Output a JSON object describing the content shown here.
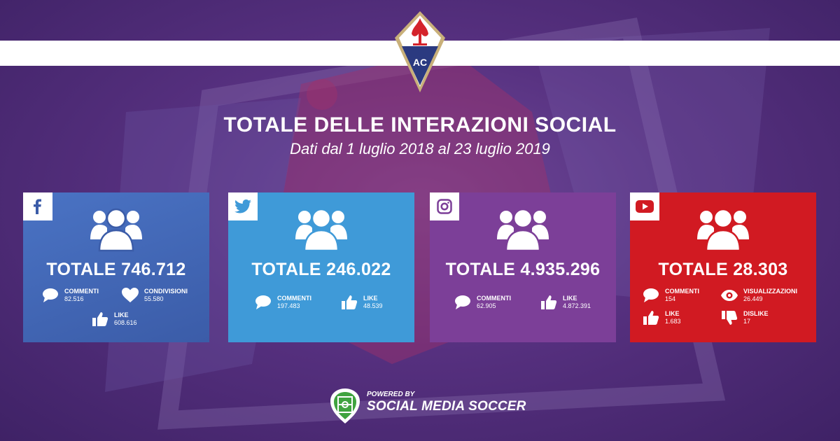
{
  "header": {
    "title": "TOTALE DELLE INTERAZIONI SOCIAL",
    "subtitle": "Dati dal 1 luglio 2018 al 23 luglio 2019",
    "crest_letters": "AC"
  },
  "colors": {
    "facebook": "#3b5ca8",
    "twitter": "#3f9ad8",
    "instagram": "#7c3f98",
    "youtube": "#d11a22",
    "background": "#56307f"
  },
  "cards": {
    "facebook": {
      "icon": "facebook-icon",
      "total": "TOTALE 746.712",
      "commenti_label": "COMMENTI",
      "commenti_value": "82.516",
      "condivisioni_label": "CONDIVISIONI",
      "condivisioni_value": "55.580",
      "like_label": "LIKE",
      "like_value": "608.616"
    },
    "twitter": {
      "icon": "twitter-icon",
      "total": "TOTALE 246.022",
      "commenti_label": "COMMENTI",
      "commenti_value": "197.483",
      "like_label": "LIKE",
      "like_value": "48.539"
    },
    "instagram": {
      "icon": "instagram-icon",
      "total": "TOTALE 4.935.296",
      "commenti_label": "COMMENTI",
      "commenti_value": "62.905",
      "like_label": "LIKE",
      "like_value": "4.872.391"
    },
    "youtube": {
      "icon": "youtube-icon",
      "total": "TOTALE 28.303",
      "commenti_label": "COMMENTI",
      "commenti_value": "154",
      "visualizzazioni_label": "VISUALIZZAZIONI",
      "visualizzazioni_value": "26.449",
      "like_label": "LIKE",
      "like_value": "1.683",
      "dislike_label": "DISLIKE",
      "dislike_value": "17"
    }
  },
  "footer": {
    "powered_by": "POWERED BY",
    "brand": "SOCIAL MEDIA SOCCER"
  }
}
